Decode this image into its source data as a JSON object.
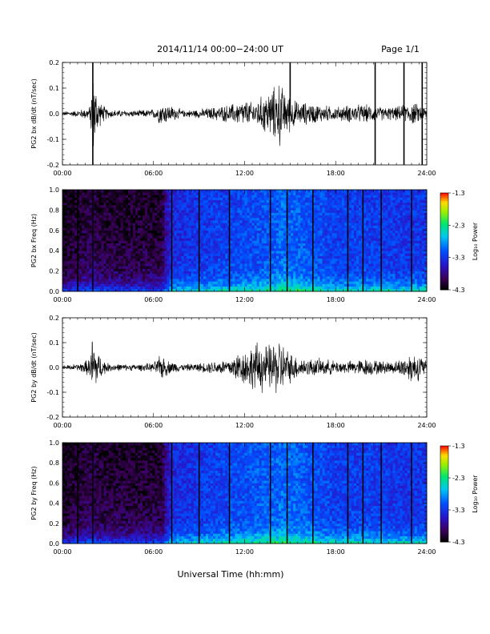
{
  "header": {
    "title": "2014/11/14  00:00−24:00 UT",
    "page": "Page 1/1"
  },
  "x_axis_title": "Universal Time (hh:mm)",
  "colorbar": {
    "label": "Log₁₀ Power",
    "ticks": [
      "-1.3",
      "-2.3",
      "-3.3",
      "-4.3"
    ],
    "range": [
      -4.3,
      -1.3
    ],
    "colormap": "rainbow (black-purple-blue-cyan-green-yellow-red)"
  },
  "chart_data": [
    {
      "type": "line",
      "ylabel": "PG2 bx dB/dt (nT/sec)",
      "xlim": [
        0,
        24
      ],
      "ylim": [
        -0.2,
        0.2
      ],
      "x_ticks": [
        "00:00",
        "06:00",
        "12:00",
        "18:00",
        "24:00"
      ],
      "y_ticks": [
        "0.2",
        "0.1",
        "0.0",
        "-0.1",
        "-0.2"
      ],
      "series": [
        {
          "x": [
            0,
            1,
            1.8,
            2.0,
            2.2,
            2.5,
            3,
            4,
            5,
            6,
            6.5,
            7,
            8,
            9,
            10,
            11,
            11.5,
            12,
            12.5,
            13,
            13.5,
            14,
            14.3,
            14.6,
            15,
            15.5,
            16,
            17,
            18,
            19,
            20,
            21,
            22,
            22.5,
            23,
            23.5,
            24
          ],
          "envelope": [
            0.01,
            0.015,
            0.03,
            0.18,
            0.12,
            0.05,
            0.02,
            0.015,
            0.015,
            0.02,
            0.05,
            0.04,
            0.015,
            0.02,
            0.03,
            0.04,
            0.05,
            0.06,
            0.05,
            0.07,
            0.1,
            0.12,
            0.15,
            0.1,
            0.08,
            0.05,
            0.05,
            0.04,
            0.03,
            0.04,
            0.04,
            0.03,
            0.03,
            0.04,
            0.05,
            0.04,
            0.03
          ]
        }
      ],
      "spikes": [
        {
          "x": 2.0,
          "y": [
            -0.2,
            0.2
          ]
        },
        {
          "x": 15.0,
          "y": [
            0.0,
            0.2
          ]
        },
        {
          "x": 20.6,
          "y": [
            -0.2,
            0.2
          ]
        },
        {
          "x": 22.5,
          "y": [
            -0.2,
            0.2
          ]
        },
        {
          "x": 23.7,
          "y": [
            -0.2,
            0.2
          ]
        }
      ]
    },
    {
      "type": "heatmap",
      "ylabel": "PG2 bx Freq (Hz)",
      "xlim": [
        0,
        24
      ],
      "ylim": [
        0,
        1.0
      ],
      "x_ticks": [
        "00:00",
        "06:00",
        "12:00",
        "18:00",
        "24:00"
      ],
      "y_ticks": [
        "1.0",
        "0.8",
        "0.6",
        "0.4",
        "0.2",
        "0.0"
      ],
      "value_range": [
        -4.3,
        -1.3
      ],
      "activity_profile": {
        "x": [
          0,
          2,
          2.5,
          6.5,
          7.2,
          9,
          12,
          14,
          14.5,
          16,
          18,
          20,
          22,
          24
        ],
        "level": [
          -4.1,
          -3.9,
          -4.0,
          -4.0,
          -3.4,
          -3.3,
          -3.2,
          -3.1,
          -3.0,
          -3.1,
          -3.25,
          -3.25,
          -3.3,
          -3.3
        ]
      },
      "data_gaps": [
        1.0,
        2.0,
        7.2,
        9.0,
        11.0,
        13.7,
        14.8,
        16.5,
        18.8,
        19.8,
        21.0,
        23.0
      ]
    },
    {
      "type": "line",
      "ylabel": "PG2 by dB/dt (nT/sec)",
      "xlim": [
        0,
        24
      ],
      "ylim": [
        -0.2,
        0.2
      ],
      "x_ticks": [
        "00:00",
        "06:00",
        "12:00",
        "18:00",
        "24:00"
      ],
      "y_ticks": [
        "0.2",
        "0.1",
        "0.0",
        "-0.1",
        "-0.2"
      ],
      "series": [
        {
          "x": [
            0,
            1,
            1.8,
            2.0,
            2.2,
            2.5,
            3,
            4,
            5,
            6,
            6.5,
            7,
            8,
            9,
            10,
            11,
            11.5,
            12,
            12.5,
            13,
            13.5,
            14,
            14.3,
            14.6,
            15,
            15.5,
            16,
            17,
            18,
            19,
            20,
            21,
            22,
            22.5,
            23,
            23.5,
            24
          ],
          "envelope": [
            0.01,
            0.015,
            0.04,
            0.17,
            0.1,
            0.05,
            0.02,
            0.015,
            0.015,
            0.02,
            0.06,
            0.03,
            0.015,
            0.02,
            0.03,
            0.04,
            0.07,
            0.08,
            0.1,
            0.12,
            0.1,
            0.12,
            0.14,
            0.1,
            0.07,
            0.05,
            0.04,
            0.04,
            0.03,
            0.03,
            0.04,
            0.03,
            0.03,
            0.05,
            0.07,
            0.06,
            0.03
          ]
        }
      ],
      "spikes": []
    },
    {
      "type": "heatmap",
      "ylabel": "PG2 by Freq (Hz)",
      "xlim": [
        0,
        24
      ],
      "ylim": [
        0,
        1.0
      ],
      "x_ticks": [
        "00:00",
        "06:00",
        "12:00",
        "18:00",
        "24:00"
      ],
      "y_ticks": [
        "1.0",
        "0.8",
        "0.6",
        "0.4",
        "0.2",
        "0.0"
      ],
      "value_range": [
        -4.3,
        -1.3
      ],
      "activity_profile": {
        "x": [
          0,
          2,
          2.5,
          6.5,
          7.2,
          9,
          12,
          14,
          14.5,
          16,
          18,
          20,
          22,
          24
        ],
        "level": [
          -4.1,
          -3.9,
          -4.0,
          -4.0,
          -3.4,
          -3.3,
          -3.15,
          -3.05,
          -3.0,
          -3.1,
          -3.25,
          -3.25,
          -3.3,
          -3.3
        ]
      },
      "data_gaps": [
        1.0,
        2.0,
        7.2,
        9.0,
        11.0,
        13.7,
        14.8,
        16.5,
        18.8,
        19.8,
        21.0,
        23.0
      ]
    }
  ]
}
